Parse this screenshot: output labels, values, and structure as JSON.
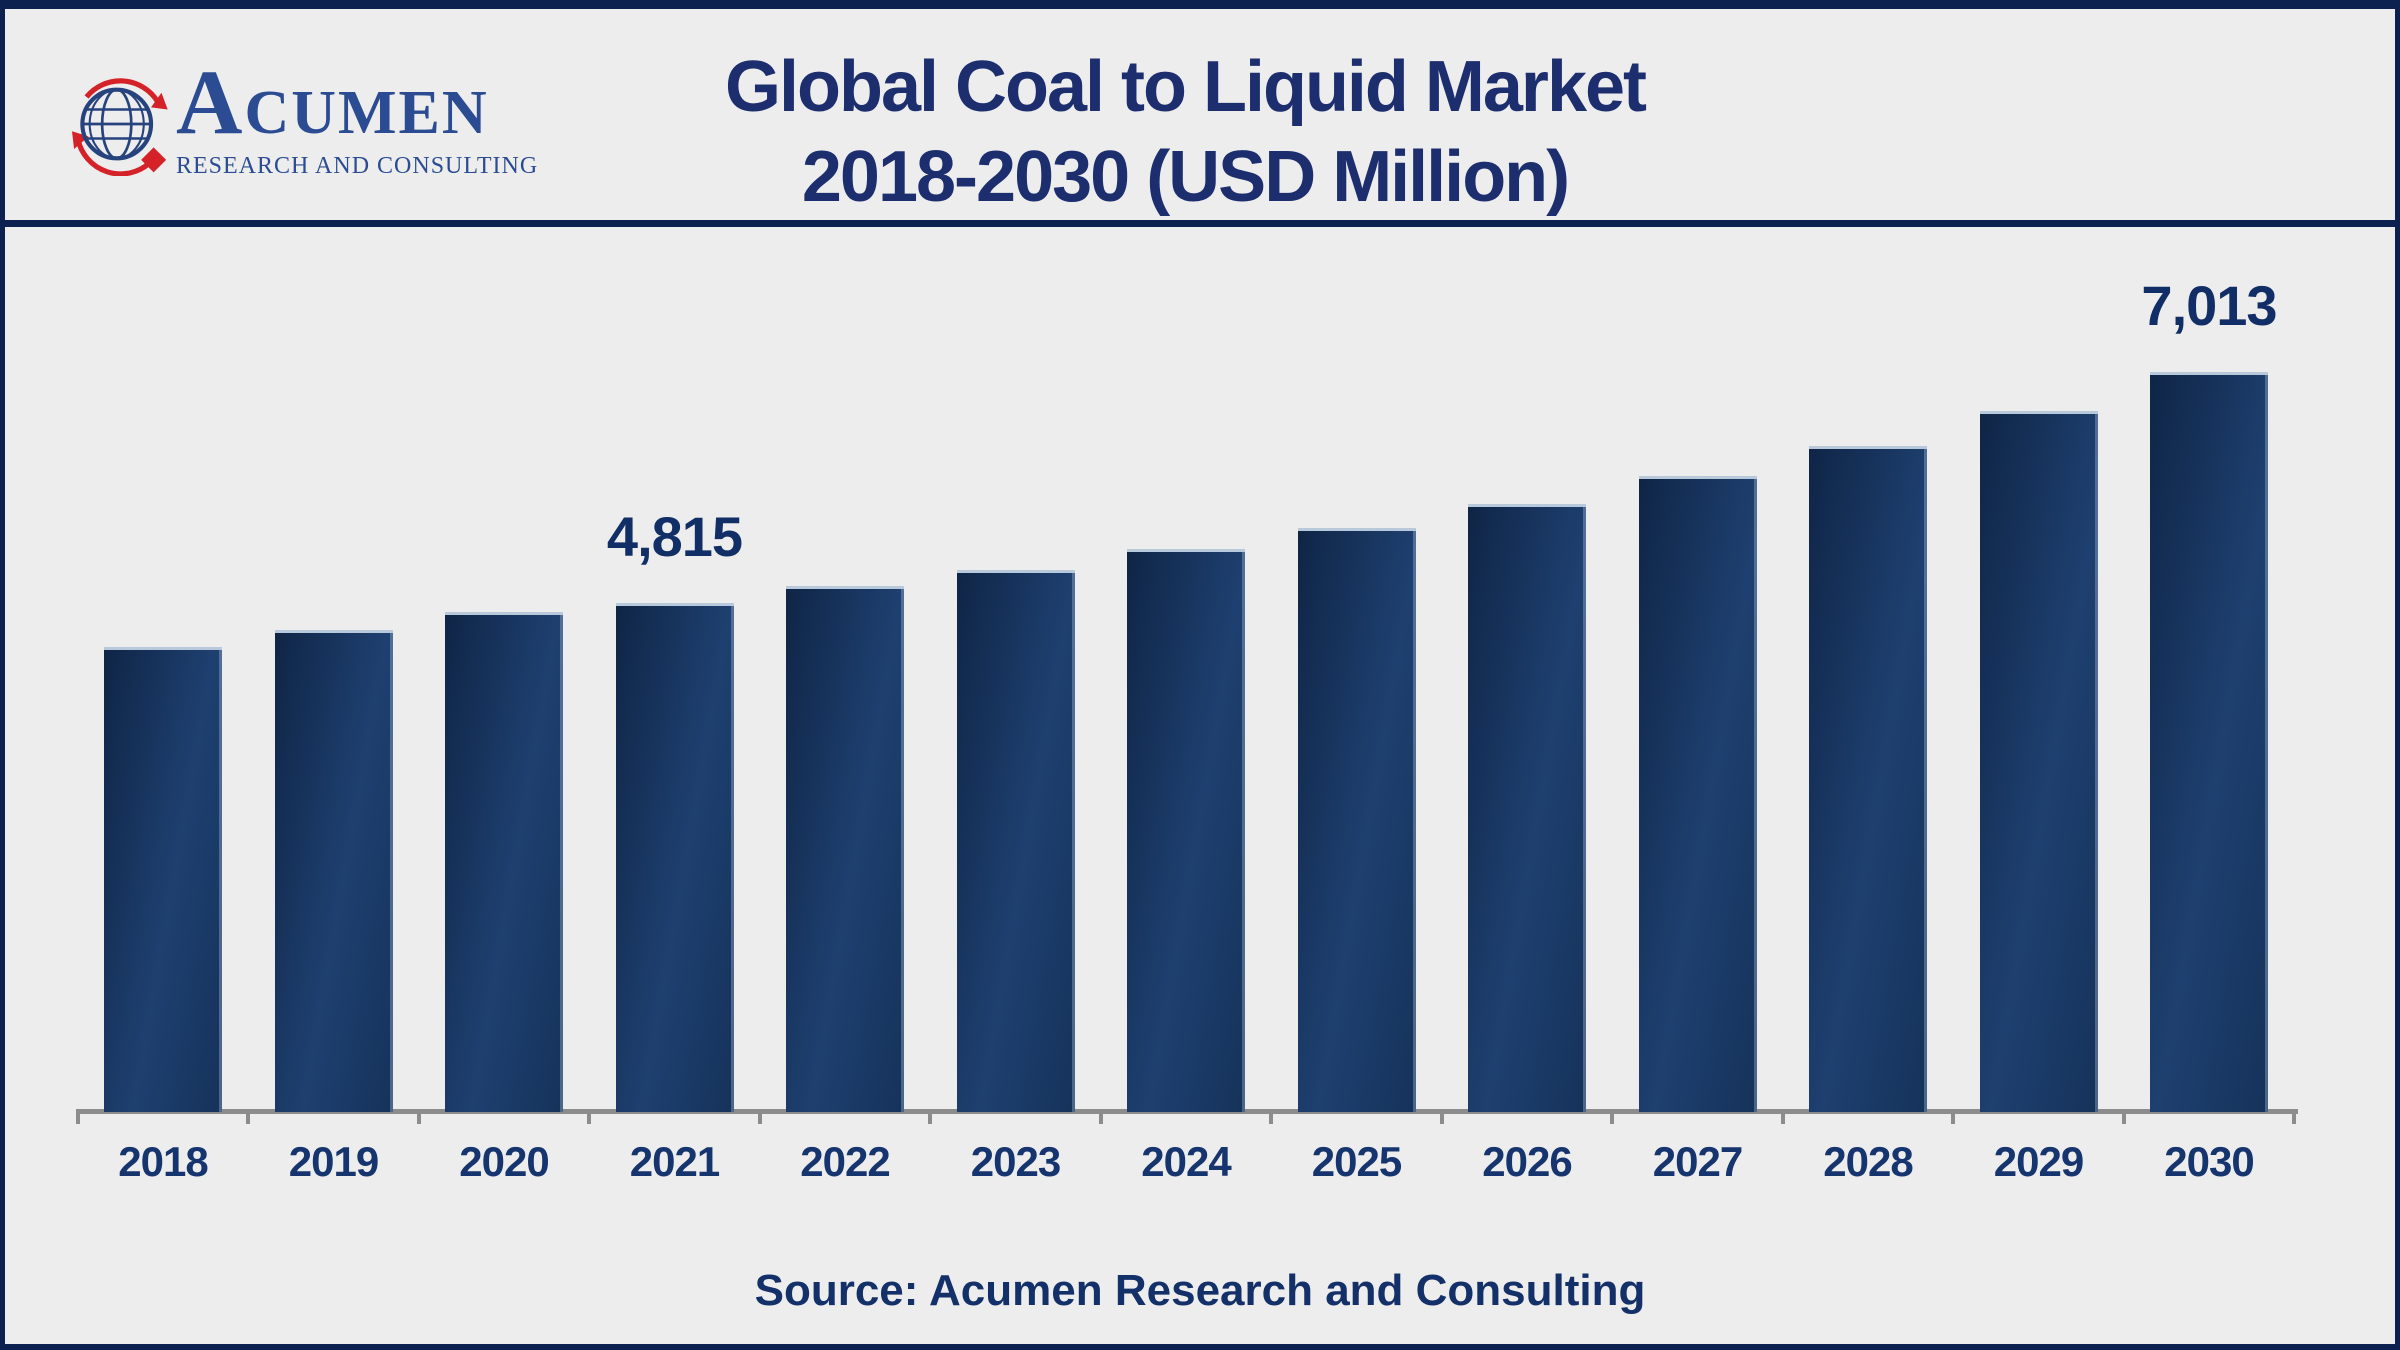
{
  "header": {
    "logo": {
      "company": "Acumen Research and Consulting",
      "name_initial": "A",
      "name_rest": "CUMEN",
      "subtitle": "RESEARCH AND CONSULTING"
    },
    "title_line1": "Global Coal to Liquid Market",
    "title_line2": "2018-2030 (USD Million)"
  },
  "chart_data": {
    "type": "bar",
    "title": "Global Coal to Liquid Market 2018-2030 (USD Million)",
    "units": "USD Million",
    "categories": [
      "2018",
      "2019",
      "2020",
      "2021",
      "2022",
      "2023",
      "2024",
      "2025",
      "2026",
      "2027",
      "2028",
      "2029",
      "2030"
    ],
    "values": [
      4400,
      4560,
      4730,
      4815,
      4980,
      5130,
      5330,
      5530,
      5760,
      6020,
      6310,
      6645,
      7013
    ],
    "data_labels": {
      "2021": "4,815",
      "2030": "7,013"
    },
    "xlabel": "",
    "ylabel": "",
    "ylim": [
      0,
      7500
    ],
    "grid": false,
    "legend": null,
    "axis_shown": "x-only"
  },
  "footer": {
    "source_label": "Source:",
    "source_value": "Acumen Research and Consulting"
  },
  "colors": {
    "frame_navy": "#0d2150",
    "title_navy": "#1d2e6f",
    "bar_gradient": [
      "#0f2546",
      "#1e4070",
      "#15325a"
    ],
    "bar_top_edge": "#b9c9dc",
    "axis_gray": "#8c8c8c",
    "background": "#ededed",
    "logo_blue": "#2b4c92",
    "logo_red": "#d42228"
  }
}
